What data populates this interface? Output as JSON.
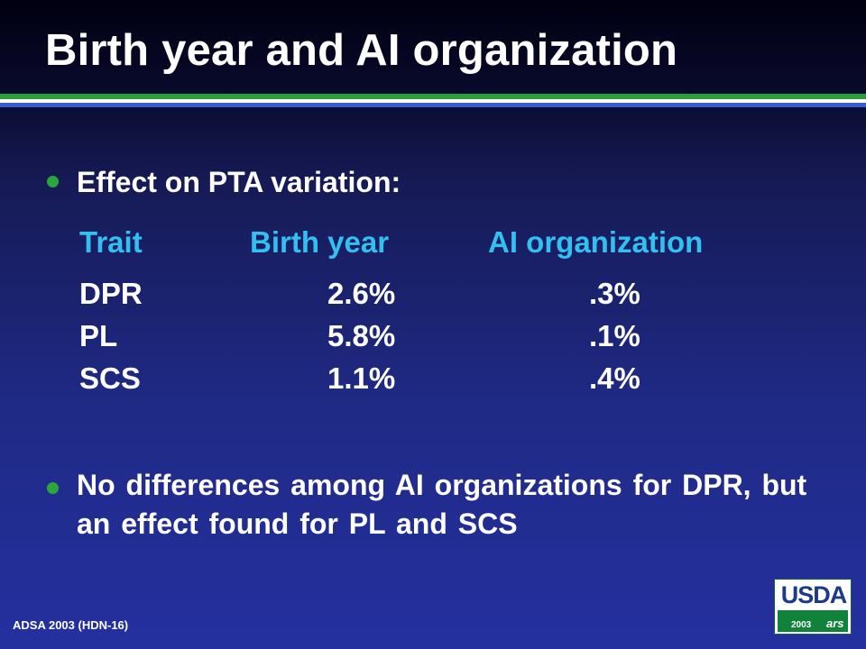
{
  "slide": {
    "title": "Birth year and AI organization",
    "bullets": [
      "Effect on PTA variation:",
      "No differences among AI organizations for DPR, but an effect found for PL and SCS"
    ],
    "table": {
      "headers": [
        "Trait",
        "Birth year",
        "AI organization"
      ],
      "rows": [
        [
          "DPR",
          "2.6%",
          ".3%"
        ],
        [
          "PL",
          "5.8%",
          ".1%"
        ],
        [
          "SCS",
          "1.1%",
          ".4%"
        ]
      ]
    },
    "footer": "ADSA 2003 (HDN-16)",
    "logo": {
      "text": "USDA",
      "year": "2003",
      "mark": "ars"
    }
  },
  "colors": {
    "background_top": "#0a0a2e",
    "background_bottom": "#2530a0",
    "header_text": "#33c0f0",
    "bullet": "#2aa63a",
    "rule_green": "#2a9d3a",
    "rule_blue": "#3a5fcc",
    "logo_blue": "#1b3a8c",
    "logo_green": "#10823a"
  }
}
